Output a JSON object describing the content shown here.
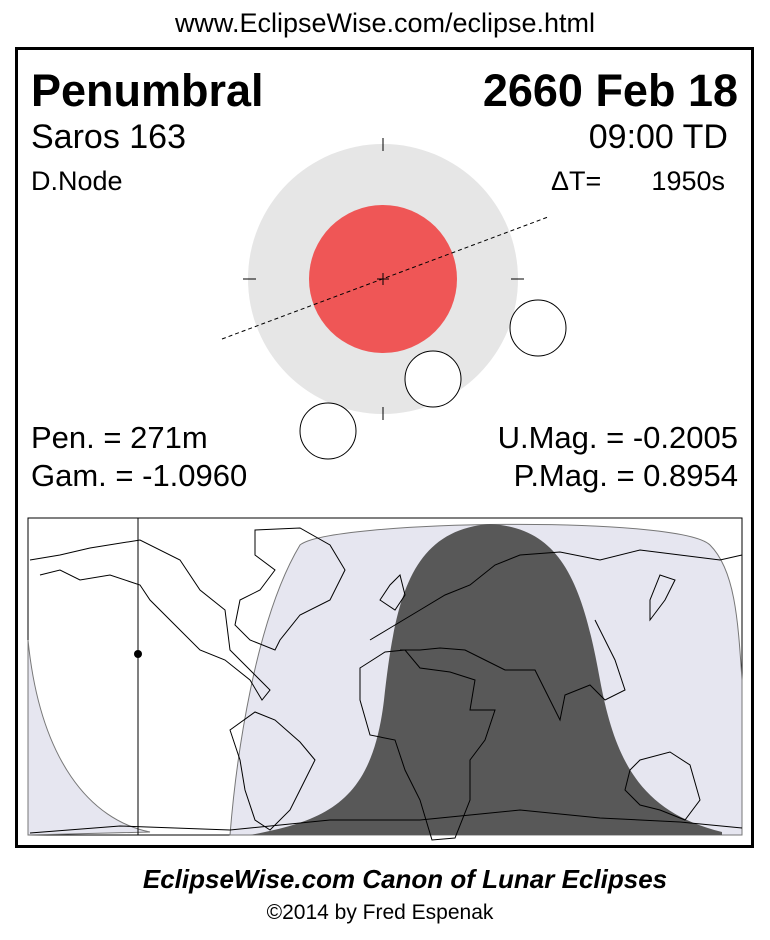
{
  "header_url": "www.EclipseWise.com/eclipse.html",
  "eclipse": {
    "type": "Penumbral",
    "date": "2660 Feb 18",
    "saros": "Saros 163",
    "time": "09:00 TD",
    "node": "D.Node",
    "delta_t_label": "ΔT=",
    "delta_t_value": "1950s",
    "pen_duration": "Pen. = 271m",
    "gamma": "Gam. = -1.0960",
    "umbral_mag": "U.Mag. = -0.2005",
    "penumbral_mag": "P.Mag. = 0.8954"
  },
  "colors": {
    "penumbra": "#e6e6e6",
    "umbra": "#ef5656",
    "map_penumbral_zone": "#e6e6f0",
    "map_total_visibility": "#585858"
  },
  "footer": {
    "title": "EclipseWise.com Canon of Lunar Eclipses",
    "copyright": "©2014 by Fred Espenak"
  }
}
